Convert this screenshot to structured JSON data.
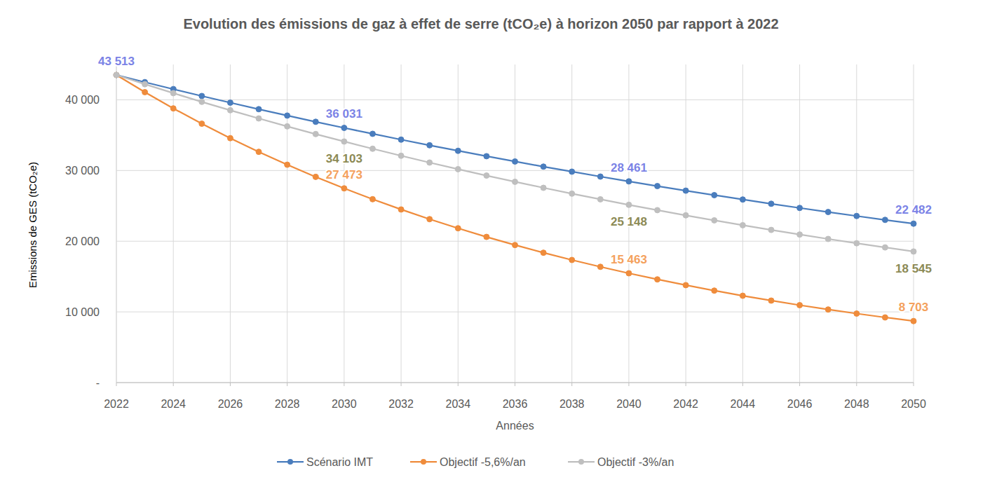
{
  "chart_data": {
    "type": "line",
    "title": "Evolution des émissions de gaz à effet de serre (tCO₂e) à horizon 2050 par rapport à 2022",
    "x_label": "Années",
    "y_label": "Emissions de GES (tCO₂e)",
    "x": [
      2022,
      2023,
      2024,
      2025,
      2026,
      2027,
      2028,
      2029,
      2030,
      2031,
      2032,
      2033,
      2034,
      2035,
      2036,
      2037,
      2038,
      2039,
      2040,
      2041,
      2042,
      2043,
      2044,
      2045,
      2046,
      2047,
      2048,
      2049,
      2050
    ],
    "xlim": [
      2022,
      2050
    ],
    "xticks": [
      2022,
      2024,
      2026,
      2028,
      2030,
      2032,
      2034,
      2036,
      2038,
      2040,
      2042,
      2044,
      2046,
      2048,
      2050
    ],
    "ylim": [
      0,
      45000
    ],
    "yticks": [
      {
        "value": 0,
        "label": "-"
      },
      {
        "value": 10000,
        "label": "10 000"
      },
      {
        "value": 20000,
        "label": "20 000"
      },
      {
        "value": 30000,
        "label": "30 000"
      },
      {
        "value": 40000,
        "label": "40 000"
      }
    ],
    "grid": true,
    "legend": "bottom",
    "data_labels": true,
    "marker": "circle",
    "line_style": "solid",
    "series": [
      {
        "name": "Scénario IMT",
        "color": "#4a7dbd",
        "values": [
          43513,
          42499,
          41508,
          40541,
          39596,
          38673,
          37772,
          36892,
          36031,
          35191,
          34371,
          33570,
          32788,
          32024,
          31278,
          30549,
          29837,
          29142,
          28461,
          27798,
          27150,
          26517,
          25899,
          25295,
          24705,
          24129,
          23567,
          23018,
          22482
        ],
        "value_labels": [
          "43 513",
          null,
          null,
          null,
          null,
          null,
          null,
          null,
          "36 031",
          null,
          null,
          null,
          null,
          null,
          null,
          null,
          null,
          null,
          "28 461",
          null,
          null,
          null,
          null,
          null,
          null,
          null,
          null,
          null,
          "22 482"
        ]
      },
      {
        "name": "Objectif -5,6%/an",
        "color": "#ef8c3c",
        "values": [
          43513,
          41082,
          38787,
          36620,
          34574,
          32643,
          30819,
          29098,
          27473,
          25938,
          24489,
          23121,
          21829,
          20610,
          19458,
          18372,
          17345,
          16377,
          15463,
          14599,
          13783,
          13013,
          12286,
          11600,
          10952,
          10340,
          9762,
          9217,
          8703
        ],
        "value_labels": [
          null,
          null,
          null,
          null,
          null,
          null,
          null,
          null,
          "27 473",
          null,
          null,
          null,
          null,
          null,
          null,
          null,
          null,
          null,
          "15 463",
          null,
          null,
          null,
          null,
          null,
          null,
          null,
          null,
          null,
          "8 703"
        ]
      },
      {
        "name": "Objectif -3%/an",
        "color": "#bfbfbf",
        "values": [
          43513,
          42208,
          40942,
          39713,
          38522,
          37366,
          36245,
          35158,
          34103,
          33080,
          32088,
          31125,
          30191,
          29286,
          28407,
          27555,
          26728,
          25926,
          25148,
          24394,
          23662,
          22952,
          22264,
          21596,
          20948,
          20320,
          19710,
          19119,
          18545
        ],
        "value_labels": [
          null,
          null,
          null,
          null,
          null,
          null,
          null,
          null,
          "34 103",
          null,
          null,
          null,
          null,
          null,
          null,
          null,
          null,
          null,
          "25 148",
          null,
          null,
          null,
          null,
          null,
          null,
          null,
          null,
          null,
          "18 545"
        ]
      }
    ]
  }
}
